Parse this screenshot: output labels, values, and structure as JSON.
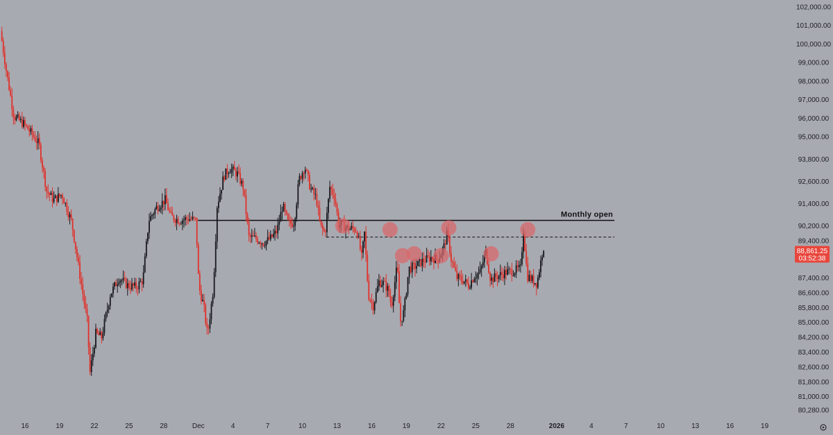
{
  "chart_data": {
    "type": "candlestick",
    "title": "",
    "xlabel": "",
    "ylabel": "",
    "ylim": [
      80000,
      102300
    ],
    "grid": false,
    "colors": {
      "background": "#a8aab1",
      "up": "#15171c",
      "down": "#e0302a",
      "marker": "#d9666a",
      "badge": "#e8463c",
      "axis_text": "#1d1f24"
    },
    "y_axis": {
      "ticks": [
        102000,
        101000,
        100000,
        99000,
        98000,
        97000,
        96000,
        95000,
        93800,
        92600,
        91400,
        90200,
        89400,
        87400,
        86600,
        85800,
        85000,
        84200,
        83400,
        82600,
        81800,
        81000,
        80280
      ],
      "labels": [
        "102,000.00",
        "101,000.00",
        "100,000.00",
        "99,000.00",
        "98,000.00",
        "97,000.00",
        "96,000.00",
        "95,000.00",
        "93,800.00",
        "92,600.00",
        "91,400.00",
        "90,200.00",
        "89,400.00",
        "87,400.00",
        "86,600.00",
        "85,800.00",
        "85,000.00",
        "84,200.00",
        "83,400.00",
        "82,600.00",
        "81,800.00",
        "81,000.00",
        "80,280.00"
      ]
    },
    "x_axis": {
      "ticks": [
        {
          "t": "2025-11-16",
          "label": "16"
        },
        {
          "t": "2025-11-19",
          "label": "19"
        },
        {
          "t": "2025-11-22",
          "label": "22"
        },
        {
          "t": "2025-11-25",
          "label": "25"
        },
        {
          "t": "2025-11-28",
          "label": "28"
        },
        {
          "t": "2025-12-01",
          "label": "Dec"
        },
        {
          "t": "2025-12-04",
          "label": "4"
        },
        {
          "t": "2025-12-07",
          "label": "7"
        },
        {
          "t": "2025-12-10",
          "label": "10"
        },
        {
          "t": "2025-12-13",
          "label": "13"
        },
        {
          "t": "2025-12-16",
          "label": "16"
        },
        {
          "t": "2025-12-19",
          "label": "19"
        },
        {
          "t": "2025-12-22",
          "label": "22"
        },
        {
          "t": "2025-12-25",
          "label": "25"
        },
        {
          "t": "2025-12-28",
          "label": "28"
        },
        {
          "t": "2026-01-01",
          "label": "2026"
        },
        {
          "t": "2026-01-04",
          "label": "4"
        },
        {
          "t": "2026-01-07",
          "label": "7"
        },
        {
          "t": "2026-01-10",
          "label": "10"
        },
        {
          "t": "2026-01-13",
          "label": "13"
        },
        {
          "t": "2026-01-16",
          "label": "16"
        },
        {
          "t": "2026-01-19",
          "label": "19"
        }
      ]
    },
    "keypoints": [
      {
        "t": "2025-11-14 00:00",
        "p": 100700
      },
      {
        "t": "2025-11-14 12:00",
        "p": 98600
      },
      {
        "t": "2025-11-15 04:00",
        "p": 96100
      },
      {
        "t": "2025-11-16 00:00",
        "p": 95700
      },
      {
        "t": "2025-11-16 16:00",
        "p": 95200
      },
      {
        "t": "2025-11-17 08:00",
        "p": 94600
      },
      {
        "t": "2025-11-18 00:00",
        "p": 92100
      },
      {
        "t": "2025-11-18 14:00",
        "p": 91600
      },
      {
        "t": "2025-11-19 08:00",
        "p": 91900
      },
      {
        "t": "2025-11-20 04:00",
        "p": 90400
      },
      {
        "t": "2025-11-20 20:00",
        "p": 87700
      },
      {
        "t": "2025-11-21 12:00",
        "p": 85100
      },
      {
        "t": "2025-11-21 18:00",
        "p": 82300
      },
      {
        "t": "2025-11-22 06:00",
        "p": 84400
      },
      {
        "t": "2025-11-22 18:00",
        "p": 84200
      },
      {
        "t": "2025-11-23 12:00",
        "p": 86500
      },
      {
        "t": "2025-11-24 06:00",
        "p": 87400
      },
      {
        "t": "2025-11-25 00:00",
        "p": 87000
      },
      {
        "t": "2025-11-25 18:00",
        "p": 86900
      },
      {
        "t": "2025-11-26 08:00",
        "p": 87300
      },
      {
        "t": "2025-11-26 20:00",
        "p": 90500
      },
      {
        "t": "2025-11-27 12:00",
        "p": 91200
      },
      {
        "t": "2025-11-28 06:00",
        "p": 91600
      },
      {
        "t": "2025-11-28 18:00",
        "p": 90700
      },
      {
        "t": "2025-11-29 12:00",
        "p": 90500
      },
      {
        "t": "2025-11-30 06:00",
        "p": 90600
      },
      {
        "t": "2025-11-30 22:00",
        "p": 90500
      },
      {
        "t": "2025-12-01 04:00",
        "p": 86900
      },
      {
        "t": "2025-12-01 14:00",
        "p": 85900
      },
      {
        "t": "2025-12-01 22:00",
        "p": 84300
      },
      {
        "t": "2025-12-02 10:00",
        "p": 86800
      },
      {
        "t": "2025-12-02 18:00",
        "p": 91300
      },
      {
        "t": "2025-12-03 08:00",
        "p": 92900
      },
      {
        "t": "2025-12-03 20:00",
        "p": 93300
      },
      {
        "t": "2025-12-04 12:00",
        "p": 93000
      },
      {
        "t": "2025-12-05 00:00",
        "p": 92300
      },
      {
        "t": "2025-12-05 12:00",
        "p": 89600
      },
      {
        "t": "2025-12-06 04:00",
        "p": 89500
      },
      {
        "t": "2025-12-06 18:00",
        "p": 89300
      },
      {
        "t": "2025-12-07 08:00",
        "p": 89500
      },
      {
        "t": "2025-12-07 22:00",
        "p": 89900
      },
      {
        "t": "2025-12-08 10:00",
        "p": 91300
      },
      {
        "t": "2025-12-08 22:00",
        "p": 90300
      },
      {
        "t": "2025-12-09 10:00",
        "p": 90400
      },
      {
        "t": "2025-12-09 20:00",
        "p": 92700
      },
      {
        "t": "2025-12-10 08:00",
        "p": 93400
      },
      {
        "t": "2025-12-10 20:00",
        "p": 92200
      },
      {
        "t": "2025-12-11 08:00",
        "p": 91700
      },
      {
        "t": "2025-12-11 16:00",
        "p": 90200
      },
      {
        "t": "2025-12-12 02:00",
        "p": 89800
      },
      {
        "t": "2025-12-12 12:00",
        "p": 92300
      },
      {
        "t": "2025-12-12 22:00",
        "p": 91800
      },
      {
        "t": "2025-12-13 06:00",
        "p": 90300
      },
      {
        "t": "2025-12-14 00:00",
        "p": 90100
      },
      {
        "t": "2025-12-14 20:00",
        "p": 90000
      },
      {
        "t": "2025-12-15 06:00",
        "p": 88500
      },
      {
        "t": "2025-12-15 12:00",
        "p": 89800
      },
      {
        "t": "2025-12-15 20:00",
        "p": 86500
      },
      {
        "t": "2025-12-16 06:00",
        "p": 85900
      },
      {
        "t": "2025-12-16 18:00",
        "p": 87200
      },
      {
        "t": "2025-12-17 04:00",
        "p": 87100
      },
      {
        "t": "2025-12-17 12:00",
        "p": 86800
      },
      {
        "t": "2025-12-17 20:00",
        "p": 85900
      },
      {
        "t": "2025-12-18 08:00",
        "p": 88100
      },
      {
        "t": "2025-12-18 14:00",
        "p": 85000
      },
      {
        "t": "2025-12-18 22:00",
        "p": 85600
      },
      {
        "t": "2025-12-19 08:00",
        "p": 87900
      },
      {
        "t": "2025-12-19 20:00",
        "p": 88000
      },
      {
        "t": "2025-12-20 12:00",
        "p": 88300
      },
      {
        "t": "2025-12-21 06:00",
        "p": 88500
      },
      {
        "t": "2025-12-21 20:00",
        "p": 88400
      },
      {
        "t": "2025-12-22 08:00",
        "p": 89000
      },
      {
        "t": "2025-12-22 16:00",
        "p": 89800
      },
      {
        "t": "2025-12-23 00:00",
        "p": 88400
      },
      {
        "t": "2025-12-23 12:00",
        "p": 87400
      },
      {
        "t": "2025-12-24 00:00",
        "p": 87300
      },
      {
        "t": "2025-12-24 12:00",
        "p": 87000
      },
      {
        "t": "2025-12-25 00:00",
        "p": 87500
      },
      {
        "t": "2025-12-25 12:00",
        "p": 87700
      },
      {
        "t": "2025-12-26 00:00",
        "p": 88800
      },
      {
        "t": "2025-12-26 10:00",
        "p": 87300
      },
      {
        "t": "2025-12-27 00:00",
        "p": 87500
      },
      {
        "t": "2025-12-27 18:00",
        "p": 87700
      },
      {
        "t": "2025-12-28 12:00",
        "p": 87800
      },
      {
        "t": "2025-12-29 00:00",
        "p": 87900
      },
      {
        "t": "2025-12-29 06:00",
        "p": 90000
      },
      {
        "t": "2025-12-29 14:00",
        "p": 87500
      },
      {
        "t": "2025-12-30 00:00",
        "p": 87300
      },
      {
        "t": "2025-12-30 10:00",
        "p": 87100
      },
      {
        "t": "2025-12-30 22:00",
        "p": 88861.25
      }
    ],
    "annotations": [
      {
        "type": "horizontal-line",
        "label": "Monthly open",
        "value": 90500,
        "from": "2025-11-30 23:00",
        "to": "2026-01-06 00:00",
        "style": "solid"
      },
      {
        "type": "horizontal-line",
        "value": 89600,
        "from": "2025-12-12 02:00",
        "to": "2026-01-06 00:00",
        "style": "dashed"
      }
    ],
    "markers": [
      {
        "t": "2025-12-13 12:00",
        "p": 90200
      },
      {
        "t": "2025-12-17 14:00",
        "p": 90000
      },
      {
        "t": "2025-12-18 16:00",
        "p": 88600
      },
      {
        "t": "2025-12-19 16:00",
        "p": 88700
      },
      {
        "t": "2025-12-22 00:00",
        "p": 88600
      },
      {
        "t": "2025-12-22 16:00",
        "p": 90100
      },
      {
        "t": "2025-12-26 08:00",
        "p": 88700
      },
      {
        "t": "2025-12-29 12:00",
        "p": 90000
      }
    ],
    "last_price": {
      "value": 88861.25,
      "label": "88,861.25",
      "countdown": "03:52:38"
    }
  }
}
